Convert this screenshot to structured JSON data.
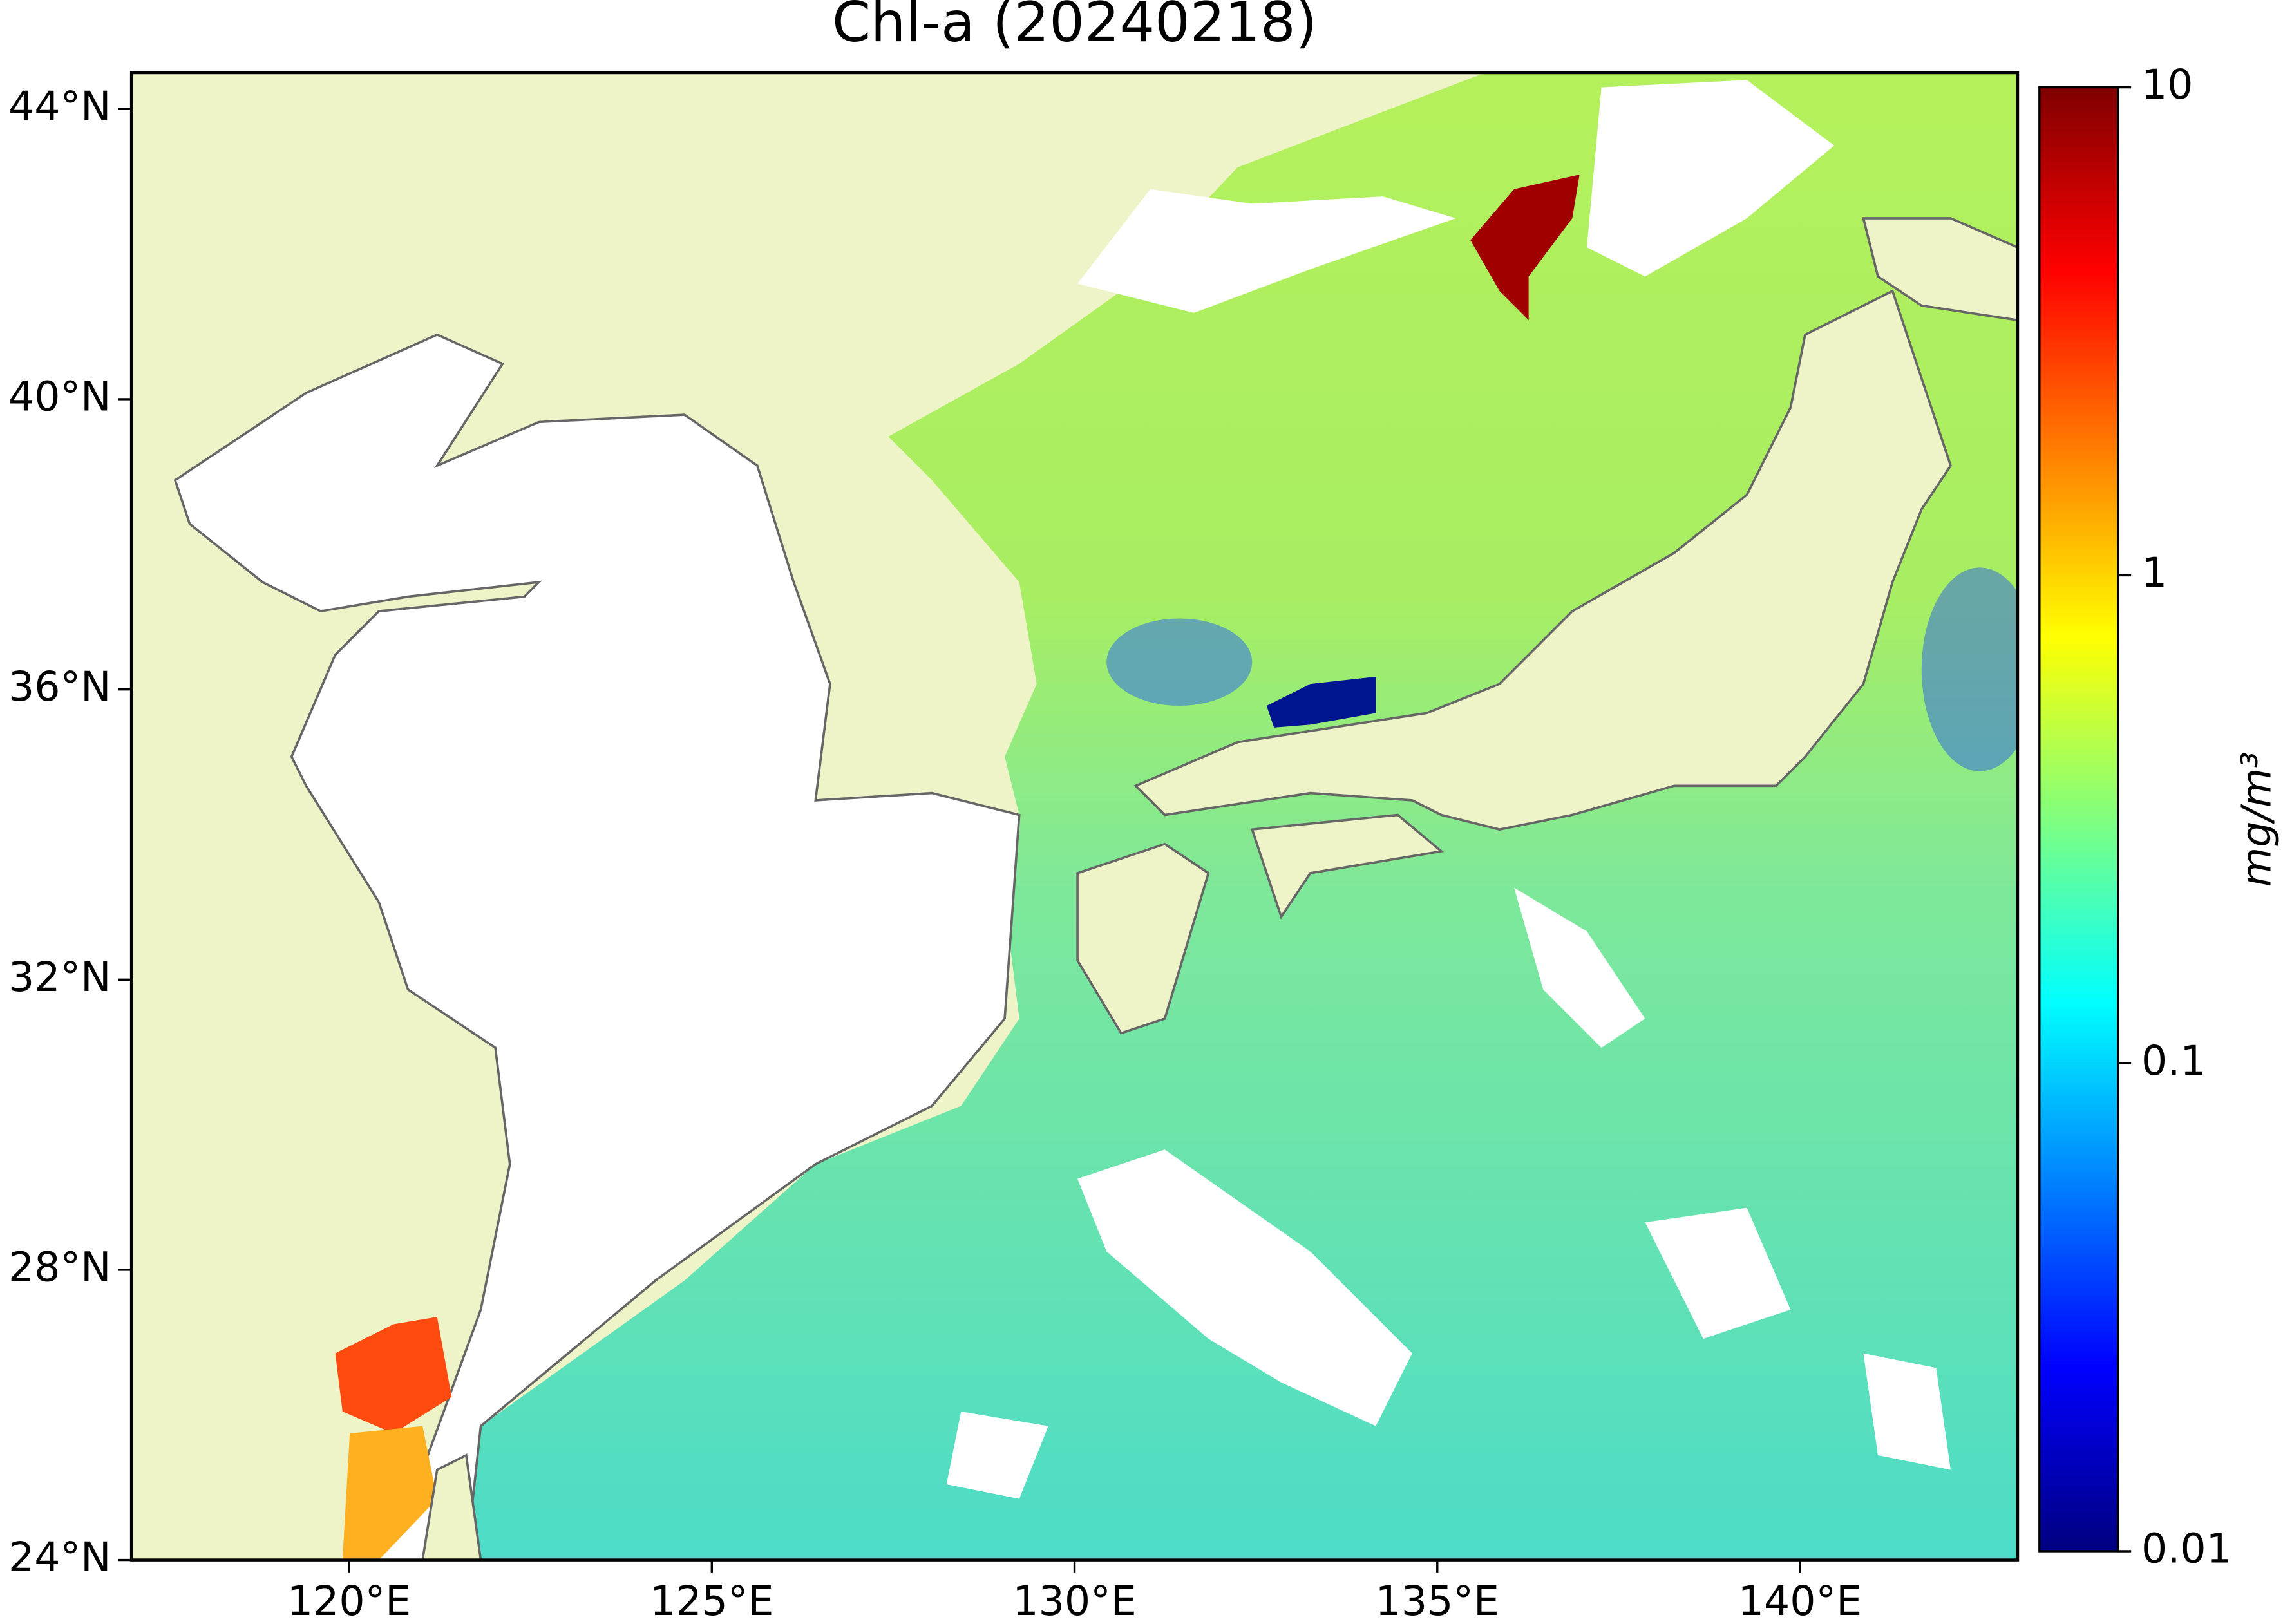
{
  "chart_data": {
    "type": "map",
    "title": "Chl-a (20240218)",
    "xlim": [
      117,
      143
    ],
    "ylim": [
      24,
      44.5
    ],
    "xticks": [
      {
        "value": 120,
        "label": "120°E"
      },
      {
        "value": 125,
        "label": "125°E"
      },
      {
        "value": 130,
        "label": "130°E"
      },
      {
        "value": 135,
        "label": "135°E"
      },
      {
        "value": 140,
        "label": "140°E"
      }
    ],
    "yticks": [
      {
        "value": 24,
        "label": "24°N"
      },
      {
        "value": 28,
        "label": "28°N"
      },
      {
        "value": 32,
        "label": "32°N"
      },
      {
        "value": 36,
        "label": "36°N"
      },
      {
        "value": 40,
        "label": "40°N"
      },
      {
        "value": 44,
        "label": "44°N"
      }
    ],
    "colorbar": {
      "label": "mg/m³",
      "lim": [
        0.01,
        10
      ],
      "ticks": [
        0.01,
        0.1,
        1,
        10
      ],
      "log": true
    }
  }
}
